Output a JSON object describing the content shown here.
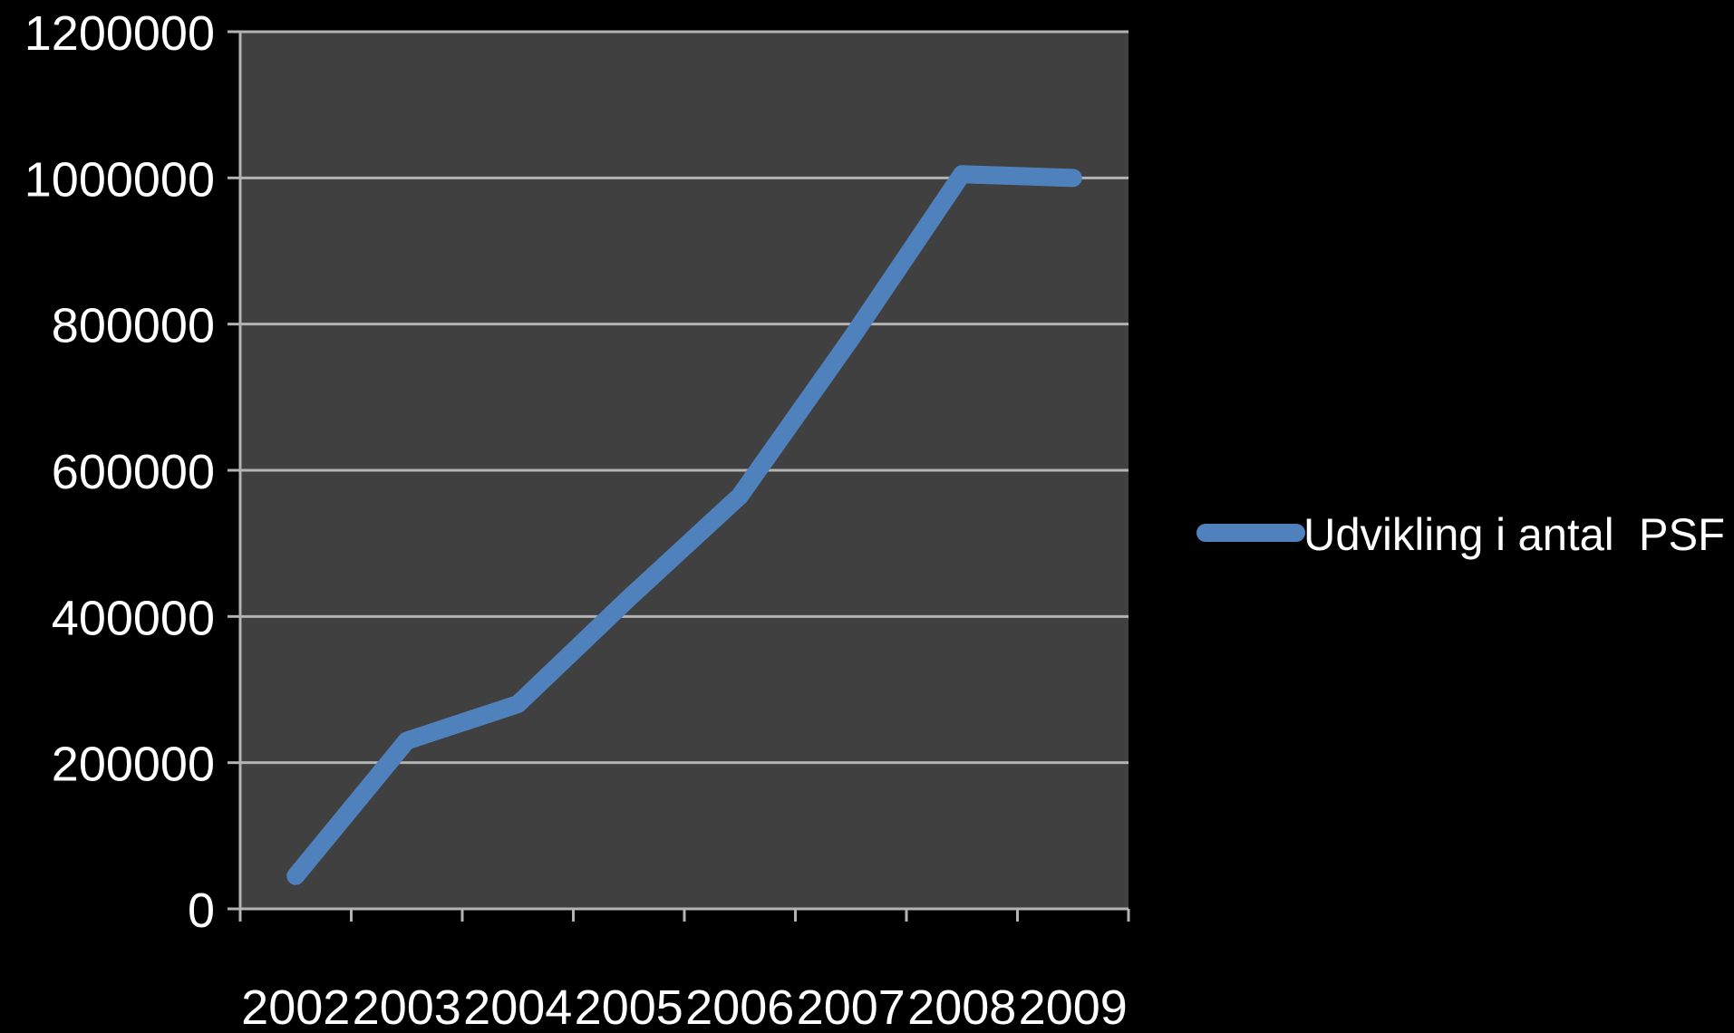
{
  "chart_data": {
    "type": "line",
    "title": "",
    "xlabel": "",
    "ylabel": "",
    "categories": [
      "2002",
      "2003",
      "2004",
      "2005",
      "2006",
      "2007",
      "2008",
      "2009"
    ],
    "series": [
      {
        "name": "Udvikling i antal  PSF",
        "values": [
          45000,
          230000,
          280000,
          425000,
          565000,
          780000,
          1005000,
          1000000
        ],
        "color": "#4f81bd"
      }
    ],
    "ylim": [
      0,
      1200000
    ],
    "y_ticks": [
      "0",
      "200000",
      "400000",
      "600000",
      "800000",
      "1000000",
      "1200000"
    ],
    "grid": true,
    "legend_position": "right",
    "colors": {
      "background": "#000000",
      "plot_area": "#404040",
      "gridline": "#b3b3b3",
      "text": "#ffffff"
    }
  }
}
